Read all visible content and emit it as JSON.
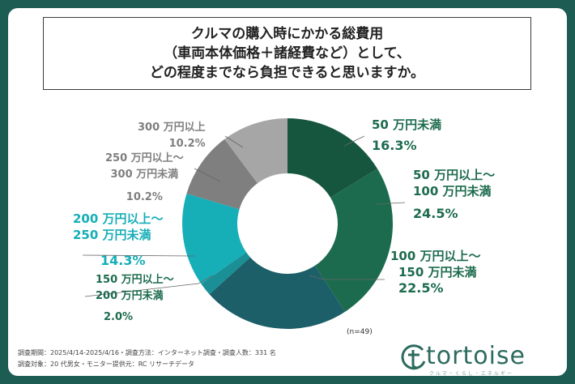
{
  "title_lines": [
    "クルマの購入時にかかる総費用",
    "（車両本体価格＋諸経費など）として、",
    "どの程度までなら負担できると思いますか。"
  ],
  "chart_data": {
    "type": "pie",
    "style": "donut",
    "slices": [
      {
        "label_lines": [
          "50 万円未満"
        ],
        "value": 16.3,
        "value_text": "16.3%",
        "color": "#16563f"
      },
      {
        "label_lines": [
          "50 万円以上～",
          "100 万円未満"
        ],
        "value": 24.5,
        "value_text": "24.5%",
        "color": "#1d6b4e"
      },
      {
        "label_lines": [
          "100 万円以上～",
          "150 万円未満"
        ],
        "value": 22.5,
        "value_text": "22.5%",
        "color": "#1d5f68"
      },
      {
        "label_lines": [
          "150 万円以上～",
          "200 万円未満"
        ],
        "value": 2.0,
        "value_text": "2.0%",
        "color": "#1a8f96"
      },
      {
        "label_lines": [
          "200 万円以上～",
          "250 万円未満"
        ],
        "value": 14.3,
        "value_text": "14.3%",
        "color": "#16aeb7"
      },
      {
        "label_lines": [
          "250 万円以上～",
          "300 万円未満"
        ],
        "value": 10.2,
        "value_text": "10.2%",
        "color": "#7f7f7f"
      },
      {
        "label_lines": [
          "300 万円以上"
        ],
        "value": 10.2,
        "value_text": "10.2%",
        "color": "#a6a6a6"
      }
    ],
    "label_colors": {
      "dark_green": "#1d6b4e",
      "teal": "#16aeb7",
      "gray": "#7f7f7f"
    }
  },
  "n_label": "(n=49)",
  "footer": {
    "line1": "調査期間：2025/4/14-2025/4/16・調査方法：インターネット調査・調査人数：331 名",
    "line2": "調査対象：20 代男女・モニター提供元：RC リサーチデータ"
  },
  "logo": {
    "text": "tortoise",
    "sub": "クルマ・くらし・エネルギー"
  }
}
